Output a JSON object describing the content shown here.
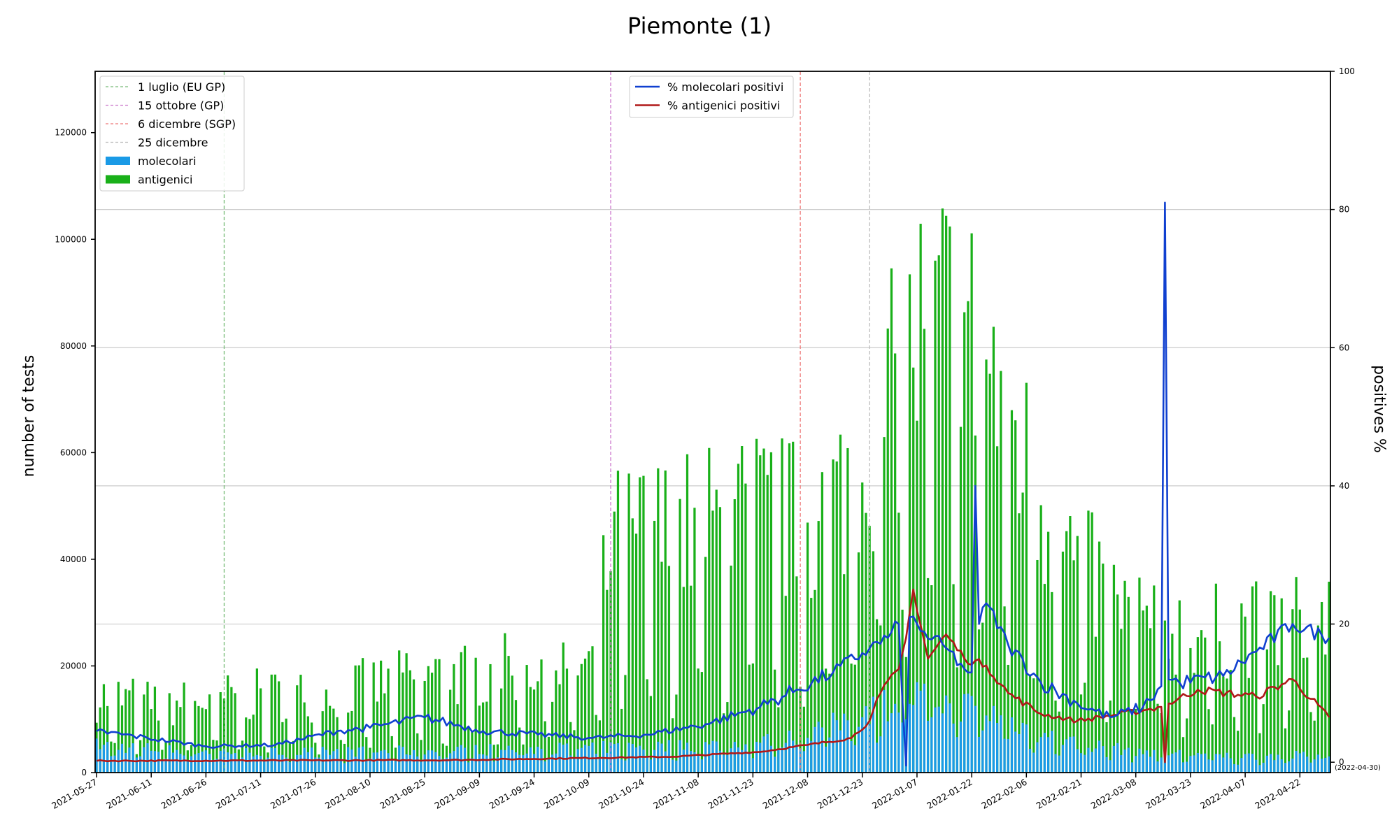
{
  "chart_data": {
    "type": "bar",
    "title": "Piemonte (1)",
    "ylabel_left": "number of tests",
    "ylabel_right": "positives %",
    "end_note": "(2022-04-30)",
    "start_date": "2021-05-27",
    "end_date": "2022-04-30",
    "ylim_left": [
      0,
      131500
    ],
    "ylim_right": [
      -1.5,
      100
    ],
    "yticks_left": [
      0,
      20000,
      40000,
      60000,
      80000,
      100000,
      120000
    ],
    "yticks_right": [
      0,
      20,
      40,
      60,
      80,
      100
    ],
    "grid": "horizontal, right axis",
    "xticks": [
      "2021-05-27",
      "2021-06-11",
      "2021-06-26",
      "2021-07-11",
      "2021-07-26",
      "2021-08-10",
      "2021-08-25",
      "2021-09-09",
      "2021-09-24",
      "2021-10-09",
      "2021-10-24",
      "2021-11-08",
      "2021-11-23",
      "2021-12-08",
      "2021-12-23",
      "2022-01-07",
      "2022-01-22",
      "2022-02-06",
      "2022-02-21",
      "2022-03-08",
      "2022-03-23",
      "2022-04-07",
      "2022-04-22"
    ],
    "vlines": [
      {
        "date": "2021-07-01",
        "label": "1 luglio (EU GP)",
        "color": "#77bb77"
      },
      {
        "date": "2021-10-15",
        "label": "15 ottobre (GP)",
        "color": "#cc77cc"
      },
      {
        "date": "2021-12-06",
        "label": "6 dicembre (SGP)",
        "color": "#ee7777"
      },
      {
        "date": "2021-12-25",
        "label": "25 dicembre",
        "color": "#bbbbbb"
      }
    ],
    "bar_series": [
      {
        "name": "molecolari",
        "color": "#1a9ae6",
        "key_dates": [
          "2021-05-27",
          "2021-06-15",
          "2021-07-15",
          "2021-08-15",
          "2021-09-15",
          "2021-10-15",
          "2021-11-15",
          "2021-12-01",
          "2021-12-15",
          "2021-12-25",
          "2022-01-05",
          "2022-01-12",
          "2022-01-22",
          "2022-02-01",
          "2022-02-10",
          "2022-02-20",
          "2022-03-05",
          "2022-03-20",
          "2022-04-05",
          "2022-04-30"
        ],
        "key_values": [
          5500,
          4500,
          4000,
          4200,
          4600,
          5000,
          5500,
          6500,
          9500,
          12500,
          15000,
          14500,
          13000,
          10500,
          7500,
          5800,
          4500,
          3800,
          3200,
          3500
        ]
      },
      {
        "name": "antigenici",
        "color": "#19b019",
        "key_dates": [
          "2021-05-27",
          "2021-06-15",
          "2021-07-10",
          "2021-07-25",
          "2021-08-10",
          "2021-08-25",
          "2021-09-10",
          "2021-09-25",
          "2021-10-10",
          "2021-10-15",
          "2021-10-25",
          "2021-11-10",
          "2021-11-25",
          "2021-12-05",
          "2021-12-15",
          "2021-12-22",
          "2021-12-28",
          "2022-01-05",
          "2022-01-10",
          "2022-01-18",
          "2022-01-25",
          "2022-02-01",
          "2022-02-10",
          "2022-02-18",
          "2022-03-01",
          "2022-03-15",
          "2022-04-01",
          "2022-04-20",
          "2022-04-30"
        ],
        "key_values": [
          17000,
          15000,
          17000,
          17000,
          19000,
          21000,
          22000,
          24000,
          24000,
          50000,
          52000,
          54000,
          57000,
          55000,
          58000,
          70000,
          78000,
          90000,
          100000,
          98000,
          92000,
          78000,
          60000,
          48000,
          38000,
          32000,
          31000,
          33000,
          34000
        ]
      }
    ],
    "line_series": [
      {
        "name": "% molecolari positivi",
        "color": "#1040d0",
        "key_dates": [
          "2021-05-27",
          "2021-06-10",
          "2021-06-26",
          "2021-07-15",
          "2021-08-01",
          "2021-08-10",
          "2021-08-25",
          "2021-09-10",
          "2021-09-25",
          "2021-10-10",
          "2021-10-25",
          "2021-11-10",
          "2021-11-25",
          "2021-12-05",
          "2021-12-15",
          "2021-12-25",
          "2021-12-30",
          "2022-01-02",
          "2022-01-04",
          "2022-01-05",
          "2022-01-08",
          "2022-01-15",
          "2022-01-20",
          "2022-01-22",
          "2022-01-23",
          "2022-01-24",
          "2022-01-26",
          "2022-02-01",
          "2022-02-10",
          "2022-02-20",
          "2022-03-01",
          "2022-03-10",
          "2022-03-15",
          "2022-03-16",
          "2022-03-17",
          "2022-03-20",
          "2022-04-01",
          "2022-04-10",
          "2022-04-20",
          "2022-04-30"
        ],
        "key_values": [
          4.5,
          3.5,
          2.3,
          2.5,
          4.5,
          5.0,
          6.5,
          4.5,
          4.0,
          3.5,
          4.0,
          5.5,
          8.0,
          10.5,
          13.0,
          16.5,
          18.0,
          20.0,
          -0.5,
          21.0,
          19.0,
          16.5,
          13.5,
          13.0,
          40.0,
          20.0,
          23.0,
          17.0,
          11.5,
          8.5,
          6.5,
          8.0,
          11.0,
          81.0,
          12.0,
          11.5,
          12.5,
          16.0,
          20.0,
          18.0
        ]
      },
      {
        "name": "% antigenici positivi",
        "color": "#b01818",
        "key_dates": [
          "2021-05-27",
          "2021-09-01",
          "2021-11-01",
          "2021-11-25",
          "2021-12-08",
          "2021-12-20",
          "2021-12-25",
          "2021-12-28",
          "2022-01-02",
          "2022-01-04",
          "2022-01-06",
          "2022-01-10",
          "2022-01-15",
          "2022-01-20",
          "2022-01-26",
          "2022-02-01",
          "2022-02-10",
          "2022-02-20",
          "2022-03-10",
          "2022-03-15",
          "2022-03-16",
          "2022-03-17",
          "2022-03-25",
          "2022-04-10",
          "2022-04-20",
          "2022-04-30"
        ],
        "key_values": [
          0.2,
          0.3,
          0.8,
          1.5,
          2.5,
          3.5,
          6.0,
          10.0,
          13.5,
          18.0,
          25.0,
          15.0,
          18.5,
          15.0,
          14.0,
          10.0,
          7.0,
          6.0,
          7.5,
          8.0,
          0.0,
          8.5,
          10.5,
          9.5,
          12.0,
          6.5
        ]
      }
    ]
  },
  "legend_vlines": [
    {
      "label": "1 luglio (EU GP)",
      "color": "#77bb77"
    },
    {
      "label": "15 ottobre (GP)",
      "color": "#cc77cc"
    },
    {
      "label": "6 dicembre (SGP)",
      "color": "#ee7777"
    },
    {
      "label": "25 dicembre",
      "color": "#bbbbbb"
    }
  ],
  "legend_bars": [
    {
      "label": "molecolari",
      "color": "#1a9ae6"
    },
    {
      "label": "antigenici",
      "color": "#19b019"
    }
  ],
  "legend_lines": [
    {
      "label": "% molecolari positivi",
      "color": "#1040d0"
    },
    {
      "label": "% antigenici positivi",
      "color": "#b01818"
    }
  ]
}
